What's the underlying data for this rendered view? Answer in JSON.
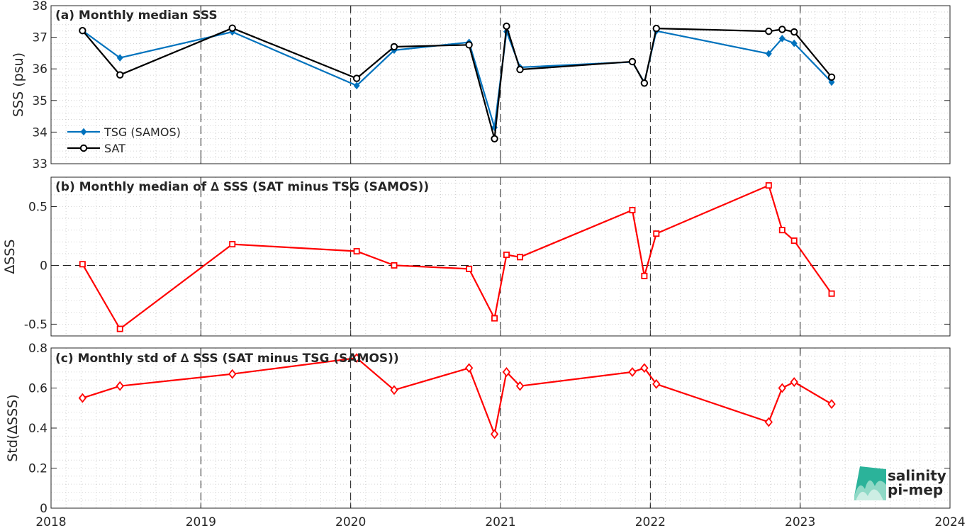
{
  "logo": {
    "line1": "salinity",
    "line2": "pi-mep",
    "color": "#1aa891"
  },
  "chart_data": [
    {
      "id": "a",
      "type": "line",
      "title": "(a) Monthly median SSS",
      "xlabel": "",
      "ylabel": "SSS (psu)",
      "xlim": [
        2018,
        2024
      ],
      "ylim": [
        33,
        38
      ],
      "xticks": [
        "2018",
        "2019",
        "2020",
        "2021",
        "2022",
        "2023",
        "2024"
      ],
      "yticks": [
        "33",
        "34",
        "35",
        "36",
        "37",
        "38"
      ],
      "yticks_values": [
        33,
        34,
        35,
        36,
        37,
        38
      ],
      "grid": "minor dotted",
      "legend": {
        "placement": "lower-left"
      },
      "series": [
        {
          "name": "TSG (SAMOS)",
          "color": "#0072bd",
          "marker": "diamond-filled",
          "points": [
            [
              2018.21,
              37.21
            ],
            [
              2018.46,
              36.35
            ],
            [
              2019.21,
              37.17
            ],
            [
              2020.04,
              35.47
            ],
            [
              2020.29,
              36.59
            ],
            [
              2020.79,
              36.84
            ],
            [
              2020.96,
              34.15
            ],
            [
              2021.04,
              37.18
            ],
            [
              2021.13,
              36.05
            ],
            [
              2021.88,
              36.22
            ],
            [
              2021.96,
              35.57
            ],
            [
              2022.04,
              37.2
            ],
            [
              2022.79,
              36.48
            ],
            [
              2022.88,
              36.96
            ],
            [
              2022.96,
              36.81
            ],
            [
              2023.21,
              35.58
            ]
          ]
        },
        {
          "name": "SAT",
          "color": "#000000",
          "marker": "circle-open",
          "points": [
            [
              2018.21,
              37.21
            ],
            [
              2018.46,
              35.81
            ],
            [
              2019.21,
              37.29
            ],
            [
              2020.04,
              35.7
            ],
            [
              2020.29,
              36.7
            ],
            [
              2020.79,
              36.76
            ],
            [
              2020.96,
              33.79
            ],
            [
              2021.04,
              37.35
            ],
            [
              2021.13,
              35.98
            ],
            [
              2021.88,
              36.23
            ],
            [
              2021.96,
              35.55
            ],
            [
              2022.04,
              37.28
            ],
            [
              2022.79,
              37.19
            ],
            [
              2022.88,
              37.25
            ],
            [
              2022.96,
              37.17
            ],
            [
              2023.21,
              35.74
            ]
          ]
        }
      ]
    },
    {
      "id": "b",
      "type": "line",
      "title": "(b) Monthly median of ∆ SSS (SAT minus TSG (SAMOS))",
      "xlabel": "",
      "ylabel": "∆SSS",
      "xlim": [
        2018,
        2024
      ],
      "ylim": [
        -0.6,
        0.75
      ],
      "xticks": [
        "2018",
        "2019",
        "2020",
        "2021",
        "2022",
        "2023",
        "2024"
      ],
      "yticks": [
        "-0.5",
        "0",
        "0.5"
      ],
      "yticks_values": [
        -0.5,
        0,
        0.5
      ],
      "grid": "minor dotted",
      "zero_line": true,
      "series": [
        {
          "name": "",
          "color": "#ff0000",
          "marker": "square-open",
          "points": [
            [
              2018.21,
              0.01
            ],
            [
              2018.46,
              -0.54
            ],
            [
              2019.21,
              0.18
            ],
            [
              2020.04,
              0.12
            ],
            [
              2020.29,
              0.0
            ],
            [
              2020.79,
              -0.03
            ],
            [
              2020.96,
              -0.45
            ],
            [
              2021.04,
              0.09
            ],
            [
              2021.13,
              0.07
            ],
            [
              2021.88,
              0.47
            ],
            [
              2021.96,
              -0.09
            ],
            [
              2022.04,
              0.27
            ],
            [
              2022.79,
              0.68
            ],
            [
              2022.88,
              0.3
            ],
            [
              2022.96,
              0.21
            ],
            [
              2023.21,
              -0.24
            ]
          ]
        }
      ]
    },
    {
      "id": "c",
      "type": "line",
      "title": "(c) Monthly std of ∆ SSS (SAT minus TSG (SAMOS))",
      "xlabel": "",
      "ylabel": "Std(∆SSS)",
      "xlim": [
        2018,
        2024
      ],
      "ylim": [
        0,
        0.8
      ],
      "xticks": [
        "2018",
        "2019",
        "2020",
        "2021",
        "2022",
        "2023",
        "2024"
      ],
      "yticks": [
        "0",
        "0.2",
        "0.4",
        "0.6",
        "0.8"
      ],
      "yticks_values": [
        0,
        0.2,
        0.4,
        0.6,
        0.8
      ],
      "grid": "minor dotted",
      "series": [
        {
          "name": "",
          "color": "#ff0000",
          "marker": "diamond-open",
          "points": [
            [
              2018.21,
              0.55
            ],
            [
              2018.46,
              0.61
            ],
            [
              2019.21,
              0.67
            ],
            [
              2020.04,
              0.75
            ],
            [
              2020.29,
              0.59
            ],
            [
              2020.79,
              0.7
            ],
            [
              2020.96,
              0.37
            ],
            [
              2021.04,
              0.68
            ],
            [
              2021.13,
              0.61
            ],
            [
              2021.88,
              0.68
            ],
            [
              2021.96,
              0.7
            ],
            [
              2022.04,
              0.62
            ],
            [
              2022.79,
              0.43
            ],
            [
              2022.88,
              0.6
            ],
            [
              2022.96,
              0.63
            ],
            [
              2023.21,
              0.52
            ]
          ]
        }
      ]
    }
  ]
}
